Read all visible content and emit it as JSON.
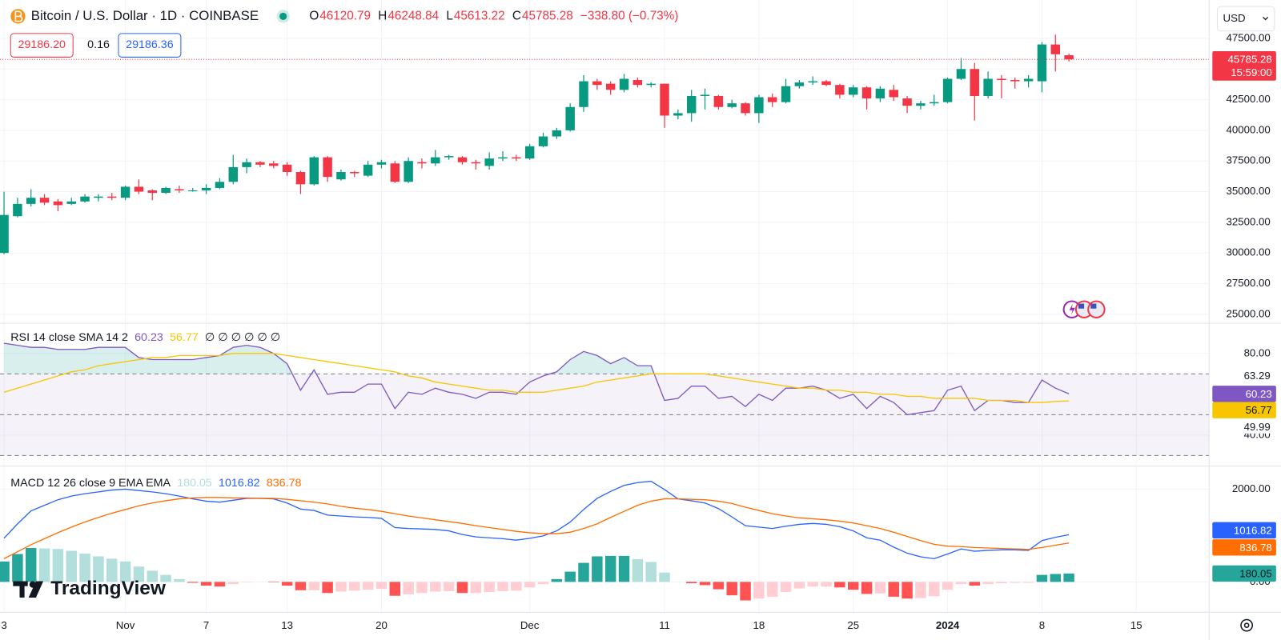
{
  "header": {
    "boxes": [
      "29186.20",
      "0.16",
      "29186.36"
    ],
    "logo": "TradingView"
  },
  "chart_data": [
    {
      "type": "candlestick",
      "title": "Bitcoin / U.S. Dollar · 1D · COINBASE",
      "ohlc_labels": [
        "O",
        "H",
        "L",
        "C"
      ],
      "change_label": "−338.80 (−0.73%)",
      "countdown": "15:59:00",
      "currency": "USD",
      "up_color": "#089981",
      "down_color": "#f23645",
      "grid": true,
      "xlim": [
        -0.3,
        89.4
      ],
      "xticks": [
        {
          "value": 0,
          "label": "3"
        },
        {
          "value": 9,
          "label": "Nov"
        },
        {
          "value": 15,
          "label": "7"
        },
        {
          "value": 21,
          "label": "13"
        },
        {
          "value": 28,
          "label": "20"
        },
        {
          "value": 39,
          "label": "Dec"
        },
        {
          "value": 49,
          "label": "11"
        },
        {
          "value": 56,
          "label": "18"
        },
        {
          "value": 63,
          "label": "25"
        },
        {
          "value": 70,
          "label": "2024"
        },
        {
          "value": 77,
          "label": "8"
        },
        {
          "value": 84,
          "label": "15"
        }
      ],
      "ylim": [
        24334,
        50626
      ],
      "yticks": [
        {
          "value": 25000,
          "label": "25000.00"
        },
        {
          "value": 27500,
          "label": "27500.00"
        },
        {
          "value": 30000,
          "label": "30000.00"
        },
        {
          "value": 32500,
          "label": "32500.00"
        },
        {
          "value": 35000,
          "label": "35000.00"
        },
        {
          "value": 37500,
          "label": "37500.00"
        },
        {
          "value": 40000,
          "label": "40000.00"
        },
        {
          "value": 42500,
          "label": "42500.00"
        },
        {
          "value": 45000,
          "label": "45000.00"
        },
        {
          "value": 47500,
          "label": "47500.00"
        }
      ],
      "open": [
        30000,
        33000,
        34000,
        34500,
        34200,
        34000,
        34200,
        34500,
        34600,
        34500,
        35400,
        35100,
        34900,
        35200,
        35100,
        35100,
        35300,
        35800,
        37000,
        37400,
        37300,
        37200,
        36600,
        35600,
        37800,
        36000,
        36600,
        36300,
        37200,
        37300,
        35800,
        37400,
        37300,
        37800,
        37800,
        37400,
        37100,
        37700,
        37800,
        37700,
        38700,
        39500,
        40000,
        41900,
        44000,
        43800,
        43300,
        44100,
        43700,
        43800,
        41200,
        41400,
        42800,
        42800,
        41900,
        42200,
        41400,
        42700,
        42300,
        43600,
        43900,
        44000,
        43700,
        42900,
        43500,
        42600,
        43300,
        42600,
        42000,
        42200,
        42300,
        44200,
        45000,
        42800,
        44200,
        44100,
        44000,
        44000,
        47000,
        46120.79
      ],
      "high": [
        35000,
        34500,
        35200,
        34800,
        34400,
        34500,
        34800,
        34800,
        34900,
        35500,
        36000,
        35200,
        35400,
        35500,
        35300,
        35600,
        36100,
        38000,
        37700,
        37500,
        37500,
        37400,
        36700,
        37900,
        37900,
        36800,
        36700,
        37500,
        37600,
        37500,
        37800,
        37700,
        38400,
        38000,
        37900,
        37600,
        38200,
        38300,
        38000,
        38900,
        39800,
        40200,
        42200,
        44500,
        44200,
        44000,
        44600,
        44300,
        43900,
        43800,
        41700,
        43300,
        43400,
        42900,
        42500,
        42300,
        42900,
        43000,
        44200,
        44100,
        44400,
        44100,
        43800,
        43700,
        43600,
        43600,
        43700,
        42800,
        42400,
        42900,
        44300,
        45900,
        45500,
        44800,
        44500,
        44300,
        44500,
        47200,
        47800,
        46248.84
      ],
      "low": [
        29900,
        32900,
        33800,
        33900,
        33400,
        33900,
        34100,
        34200,
        34300,
        34300,
        34800,
        34300,
        34800,
        34900,
        35000,
        34800,
        35200,
        35600,
        36500,
        37000,
        36900,
        36300,
        34800,
        35500,
        35800,
        35900,
        36200,
        36200,
        36900,
        35700,
        35700,
        36900,
        37100,
        37600,
        37200,
        36800,
        36800,
        37500,
        37500,
        37600,
        38600,
        39300,
        39900,
        41500,
        43300,
        42900,
        43100,
        43500,
        43500,
        40200,
        40900,
        40700,
        41700,
        41700,
        41800,
        41200,
        40600,
        41900,
        42200,
        43400,
        43700,
        43600,
        42600,
        42700,
        41700,
        42300,
        42400,
        41400,
        41700,
        42000,
        42200,
        44100,
        40800,
        42600,
        42600,
        43400,
        43500,
        43100,
        44800,
        45613.22
      ],
      "close": [
        33100,
        34000,
        34500,
        34100,
        33900,
        34200,
        34600,
        34600,
        34500,
        35400,
        35000,
        34900,
        35300,
        35100,
        35100,
        35300,
        35800,
        37000,
        37400,
        37200,
        37100,
        36600,
        35600,
        37800,
        36200,
        36600,
        36500,
        37200,
        37400,
        35800,
        37500,
        37300,
        37800,
        37900,
        37400,
        37300,
        37700,
        37800,
        37700,
        38700,
        39500,
        40000,
        41900,
        44000,
        43700,
        43300,
        44200,
        43700,
        43800,
        41200,
        41400,
        42800,
        42900,
        41900,
        42200,
        41400,
        42700,
        42300,
        43600,
        43900,
        44000,
        43700,
        42900,
        43500,
        42600,
        43400,
        42700,
        42000,
        42200,
        42300,
        44200,
        45000,
        42800,
        44200,
        44100,
        44000,
        44200,
        47000,
        46200,
        45785.28
      ]
    },
    {
      "type": "line",
      "title": "RSI 14 close SMA 14 2",
      "legend_extra": "∅ ∅ ∅ ∅ ∅ ∅",
      "ylim": [
        25.2,
        94.4
      ],
      "yticks": [
        {
          "value": 80,
          "label": "80.00"
        },
        {
          "value": 40,
          "label": "40.00"
        }
      ],
      "axis_labels": [
        "63.29",
        "49.99"
      ],
      "bands": [
        70,
        50,
        30
      ],
      "band_color": "#7e57c2",
      "overbought_color": "#26a69a",
      "series": [
        {
          "color": "#7e57c2",
          "values": [
            85,
            84,
            83,
            83,
            82,
            82,
            82,
            83,
            83,
            83,
            78,
            77,
            77,
            77,
            77,
            78,
            79,
            83,
            84,
            83,
            80,
            75,
            62,
            72,
            60,
            61,
            61,
            65,
            65,
            53,
            61,
            60,
            63,
            61,
            60,
            58,
            61,
            61,
            60,
            66,
            69,
            71,
            77,
            81,
            79,
            75,
            78,
            74,
            74,
            57,
            58,
            64,
            64,
            58,
            59,
            54,
            60,
            57,
            63,
            63,
            64,
            62,
            58,
            60,
            53,
            59,
            56,
            50,
            51,
            52,
            62,
            64,
            52,
            57,
            57,
            56,
            56,
            67,
            63,
            60.23
          ]
        },
        {
          "color": "#f7c600",
          "values": [
            61,
            63,
            65,
            67,
            69,
            71,
            72,
            74,
            75,
            76,
            77,
            78,
            78,
            79,
            79,
            79,
            79,
            80,
            80,
            80,
            80,
            79,
            78,
            77,
            76,
            75,
            74,
            73,
            72,
            71,
            69,
            68,
            66,
            65,
            64,
            63,
            62,
            62,
            61,
            61,
            61,
            62,
            63,
            64,
            66,
            67,
            68,
            69,
            70,
            70,
            70,
            70,
            70,
            69,
            68,
            67,
            66,
            65,
            64,
            63,
            63,
            62,
            62,
            61,
            61,
            60,
            60,
            59,
            59,
            58,
            58,
            58,
            58,
            57,
            57,
            57,
            56,
            56,
            56.5,
            56.77
          ]
        }
      ]
    },
    {
      "type": "macd",
      "title": "MACD 12 26 close 9 EMA EMA",
      "ylim": [
        -655,
        2478
      ],
      "yticks": [
        {
          "value": 2000,
          "label": "2000.00"
        },
        {
          "value": 0,
          "label": "0.00"
        }
      ],
      "histogram": {
        "colors": [
          "#26a69a",
          "#b2dfdb",
          "#ff5252",
          "#ffcdd2"
        ],
        "values": [
          440,
          600,
          730,
          720,
          710,
          670,
          610,
          550,
          500,
          440,
          330,
          240,
          150,
          60,
          -20,
          -80,
          -100,
          -50,
          -10,
          0,
          -10,
          -80,
          -180,
          -180,
          -240,
          -210,
          -190,
          -170,
          -150,
          -300,
          -270,
          -240,
          -210,
          -200,
          -240,
          -240,
          -220,
          -200,
          -190,
          -120,
          -50,
          60,
          220,
          410,
          550,
          560,
          560,
          490,
          430,
          200,
          0,
          -30,
          -70,
          -160,
          -290,
          -400,
          -360,
          -320,
          -220,
          -140,
          -100,
          -100,
          -120,
          -170,
          -260,
          -250,
          -320,
          -360,
          -350,
          -310,
          -170,
          -50,
          -80,
          -50,
          -30,
          -20,
          -20,
          150,
          170,
          180.05
        ]
      },
      "series": [
        {
          "color": "#2962ff",
          "values": [
            940,
            1250,
            1530,
            1650,
            1770,
            1850,
            1900,
            1940,
            1980,
            2000,
            1970,
            1940,
            1900,
            1850,
            1790,
            1740,
            1720,
            1760,
            1800,
            1800,
            1790,
            1700,
            1570,
            1540,
            1440,
            1420,
            1400,
            1390,
            1370,
            1170,
            1150,
            1140,
            1130,
            1100,
            1020,
            970,
            950,
            930,
            900,
            940,
            990,
            1100,
            1290,
            1560,
            1800,
            1950,
            2080,
            2140,
            2170,
            1990,
            1790,
            1750,
            1700,
            1580,
            1400,
            1210,
            1180,
            1150,
            1200,
            1240,
            1260,
            1240,
            1190,
            1100,
            950,
            900,
            750,
            620,
            540,
            500,
            600,
            710,
            660,
            680,
            690,
            690,
            680,
            890,
            960,
            1016.82
          ]
        },
        {
          "color": "#ff6d00",
          "values": [
            500,
            650,
            800,
            930,
            1060,
            1180,
            1290,
            1390,
            1480,
            1560,
            1640,
            1700,
            1750,
            1790,
            1810,
            1820,
            1820,
            1810,
            1810,
            1800,
            1800,
            1780,
            1750,
            1720,
            1680,
            1630,
            1590,
            1560,
            1520,
            1470,
            1420,
            1380,
            1340,
            1300,
            1260,
            1210,
            1170,
            1130,
            1090,
            1060,
            1040,
            1040,
            1070,
            1150,
            1250,
            1390,
            1520,
            1650,
            1740,
            1790,
            1790,
            1780,
            1770,
            1740,
            1690,
            1610,
            1540,
            1470,
            1420,
            1380,
            1360,
            1340,
            1310,
            1270,
            1210,
            1150,
            1070,
            980,
            890,
            810,
            770,
            760,
            740,
            730,
            720,
            710,
            700,
            740,
            790,
            836.78
          ]
        }
      ]
    }
  ]
}
